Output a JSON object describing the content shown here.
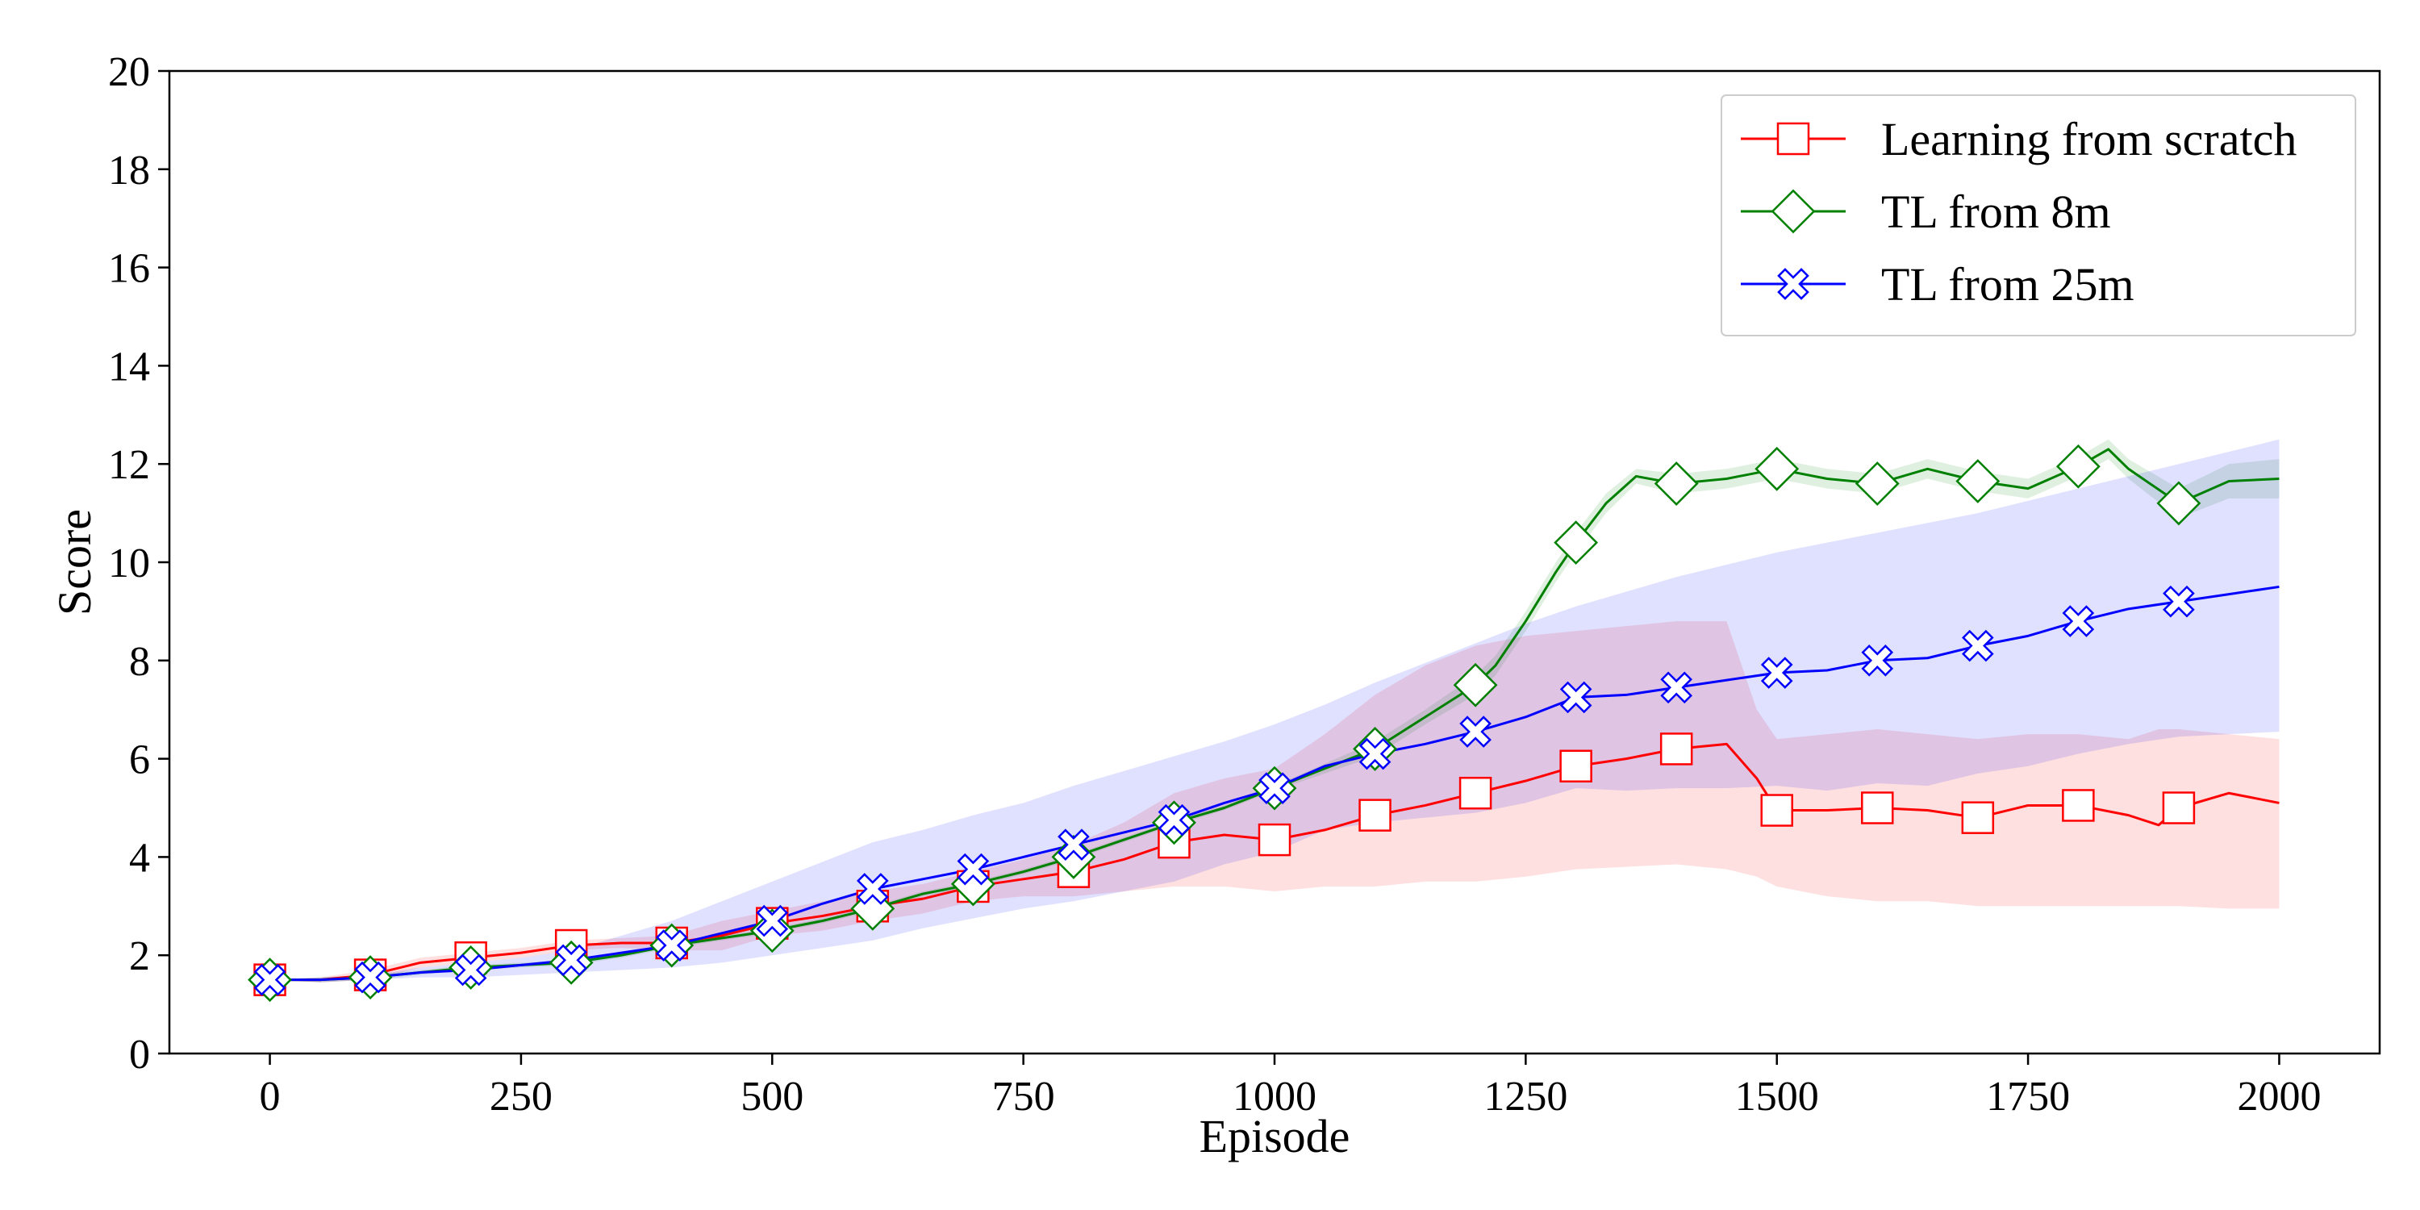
{
  "chart_data": {
    "type": "line",
    "title": "",
    "xlabel": "Episode",
    "ylabel": "Score",
    "xlim": [
      -100,
      2100
    ],
    "ylim": [
      0,
      20
    ],
    "xticks": [
      0,
      250,
      500,
      750,
      1000,
      1250,
      1500,
      1750,
      2000
    ],
    "yticks": [
      0,
      2,
      4,
      6,
      8,
      10,
      12,
      14,
      16,
      18,
      20
    ],
    "grid": false,
    "legend_position": "top-right",
    "series": [
      {
        "name": "Learning from scratch",
        "color": "#ff0000",
        "marker": "square",
        "marker_x": [
          0,
          100,
          200,
          300,
          400,
          500,
          600,
          700,
          800,
          900,
          1000,
          1100,
          1200,
          1300,
          1400,
          1500,
          1600,
          1700,
          1800,
          1900
        ],
        "x": [
          0,
          50,
          100,
          150,
          200,
          250,
          300,
          350,
          400,
          450,
          500,
          550,
          600,
          650,
          700,
          750,
          800,
          850,
          900,
          950,
          1000,
          1050,
          1100,
          1150,
          1200,
          1250,
          1300,
          1350,
          1400,
          1450,
          1480,
          1500,
          1550,
          1600,
          1650,
          1700,
          1750,
          1800,
          1850,
          1880,
          1900,
          1950,
          2000
        ],
        "y": [
          1.5,
          1.5,
          1.6,
          1.85,
          1.95,
          2.05,
          2.2,
          2.25,
          2.25,
          2.4,
          2.65,
          2.8,
          3.0,
          3.15,
          3.4,
          3.55,
          3.7,
          3.95,
          4.3,
          4.45,
          4.35,
          4.55,
          4.85,
          5.05,
          5.3,
          5.55,
          5.85,
          6.0,
          6.2,
          6.3,
          5.6,
          4.95,
          4.95,
          5.0,
          4.95,
          4.8,
          5.05,
          5.05,
          4.85,
          4.65,
          5.0,
          5.3,
          5.1
        ],
        "band_upper": [
          1.5,
          1.55,
          1.7,
          1.95,
          2.05,
          2.15,
          2.3,
          2.35,
          2.4,
          2.7,
          2.9,
          3.1,
          3.3,
          3.45,
          3.7,
          3.95,
          4.25,
          4.7,
          5.3,
          5.6,
          5.8,
          6.5,
          7.3,
          7.9,
          8.3,
          8.5,
          8.6,
          8.7,
          8.8,
          8.8,
          7.0,
          6.4,
          6.5,
          6.6,
          6.5,
          6.4,
          6.5,
          6.5,
          6.4,
          6.6,
          6.6,
          6.5,
          6.4
        ],
        "band_lower": [
          1.5,
          1.45,
          1.5,
          1.75,
          1.85,
          1.95,
          2.1,
          2.15,
          2.1,
          2.1,
          2.4,
          2.5,
          2.7,
          2.85,
          3.1,
          3.2,
          3.2,
          3.3,
          3.4,
          3.4,
          3.3,
          3.4,
          3.4,
          3.5,
          3.5,
          3.6,
          3.75,
          3.8,
          3.85,
          3.75,
          3.6,
          3.4,
          3.2,
          3.1,
          3.1,
          3.0,
          3.0,
          3.0,
          3.0,
          3.0,
          3.0,
          2.95,
          2.95
        ]
      },
      {
        "name": "TL from 8m",
        "color": "#008000",
        "marker": "diamond",
        "marker_x": [
          0,
          100,
          200,
          300,
          400,
          500,
          600,
          700,
          800,
          900,
          1000,
          1100,
          1200,
          1300,
          1400,
          1500,
          1600,
          1700,
          1800,
          1900
        ],
        "x": [
          0,
          50,
          100,
          150,
          200,
          250,
          300,
          350,
          400,
          450,
          500,
          550,
          600,
          650,
          700,
          750,
          800,
          850,
          900,
          950,
          1000,
          1050,
          1100,
          1150,
          1200,
          1220,
          1250,
          1280,
          1300,
          1330,
          1360,
          1400,
          1450,
          1500,
          1550,
          1600,
          1650,
          1700,
          1750,
          1800,
          1830,
          1850,
          1900,
          1950,
          2000
        ],
        "y": [
          1.5,
          1.5,
          1.55,
          1.65,
          1.75,
          1.8,
          1.85,
          2.0,
          2.2,
          2.35,
          2.5,
          2.7,
          2.95,
          3.25,
          3.45,
          3.7,
          4.0,
          4.35,
          4.7,
          5.0,
          5.4,
          5.8,
          6.2,
          6.85,
          7.5,
          7.9,
          8.8,
          9.8,
          10.4,
          11.2,
          11.75,
          11.6,
          11.7,
          11.9,
          11.7,
          11.6,
          11.9,
          11.65,
          11.5,
          11.95,
          12.3,
          11.9,
          11.2,
          11.65,
          11.7
        ],
        "band_upper": [
          1.5,
          1.55,
          1.6,
          1.7,
          1.8,
          1.85,
          1.9,
          2.05,
          2.25,
          2.4,
          2.55,
          2.75,
          3.0,
          3.3,
          3.5,
          3.75,
          4.05,
          4.4,
          4.75,
          5.05,
          5.45,
          5.9,
          6.35,
          7.0,
          7.7,
          8.1,
          9.0,
          10.0,
          10.6,
          11.4,
          11.9,
          11.8,
          11.9,
          12.1,
          11.9,
          11.8,
          12.1,
          11.85,
          11.7,
          12.15,
          12.5,
          12.1,
          11.5,
          12.0,
          12.1
        ],
        "band_lower": [
          1.5,
          1.45,
          1.5,
          1.6,
          1.7,
          1.75,
          1.8,
          1.95,
          2.15,
          2.3,
          2.45,
          2.65,
          2.9,
          3.2,
          3.4,
          3.65,
          3.95,
          4.3,
          4.65,
          4.95,
          5.35,
          5.7,
          6.05,
          6.7,
          7.3,
          7.7,
          8.6,
          9.6,
          10.2,
          11.0,
          11.6,
          11.4,
          11.5,
          11.7,
          11.5,
          11.4,
          11.7,
          11.45,
          11.3,
          11.75,
          12.1,
          11.7,
          10.9,
          11.3,
          11.3
        ]
      },
      {
        "name": "TL from 25m",
        "color": "#0000ff",
        "marker": "x",
        "marker_x": [
          0,
          100,
          200,
          300,
          400,
          500,
          600,
          700,
          800,
          900,
          1000,
          1100,
          1200,
          1300,
          1400,
          1500,
          1600,
          1700,
          1800,
          1900
        ],
        "x": [
          0,
          50,
          100,
          150,
          200,
          250,
          300,
          350,
          400,
          450,
          500,
          550,
          600,
          650,
          700,
          750,
          800,
          850,
          900,
          950,
          1000,
          1050,
          1100,
          1150,
          1200,
          1250,
          1300,
          1350,
          1400,
          1450,
          1500,
          1550,
          1600,
          1650,
          1700,
          1750,
          1800,
          1850,
          1900,
          1950,
          2000
        ],
        "y": [
          1.5,
          1.5,
          1.55,
          1.65,
          1.7,
          1.8,
          1.9,
          2.05,
          2.2,
          2.45,
          2.7,
          3.05,
          3.35,
          3.55,
          3.75,
          4.0,
          4.25,
          4.5,
          4.75,
          5.1,
          5.4,
          5.85,
          6.1,
          6.3,
          6.55,
          6.85,
          7.25,
          7.3,
          7.45,
          7.6,
          7.75,
          7.8,
          8.0,
          8.05,
          8.3,
          8.5,
          8.8,
          9.05,
          9.2,
          9.35,
          9.5
        ],
        "band_upper": [
          1.5,
          1.55,
          1.6,
          1.75,
          1.85,
          1.95,
          2.1,
          2.4,
          2.7,
          3.1,
          3.5,
          3.9,
          4.3,
          4.55,
          4.85,
          5.1,
          5.45,
          5.75,
          6.05,
          6.35,
          6.7,
          7.1,
          7.55,
          7.95,
          8.35,
          8.75,
          9.1,
          9.4,
          9.7,
          9.95,
          10.2,
          10.4,
          10.6,
          10.8,
          11.0,
          11.25,
          11.5,
          11.75,
          12.0,
          12.25,
          12.5
        ],
        "band_lower": [
          1.5,
          1.45,
          1.5,
          1.55,
          1.55,
          1.6,
          1.65,
          1.7,
          1.75,
          1.85,
          2.0,
          2.15,
          2.3,
          2.55,
          2.75,
          2.95,
          3.1,
          3.3,
          3.5,
          3.85,
          4.1,
          4.55,
          4.7,
          4.8,
          4.9,
          5.1,
          5.4,
          5.35,
          5.4,
          5.4,
          5.45,
          5.35,
          5.5,
          5.45,
          5.7,
          5.85,
          6.1,
          6.3,
          6.45,
          6.5,
          6.55
        ]
      }
    ]
  }
}
